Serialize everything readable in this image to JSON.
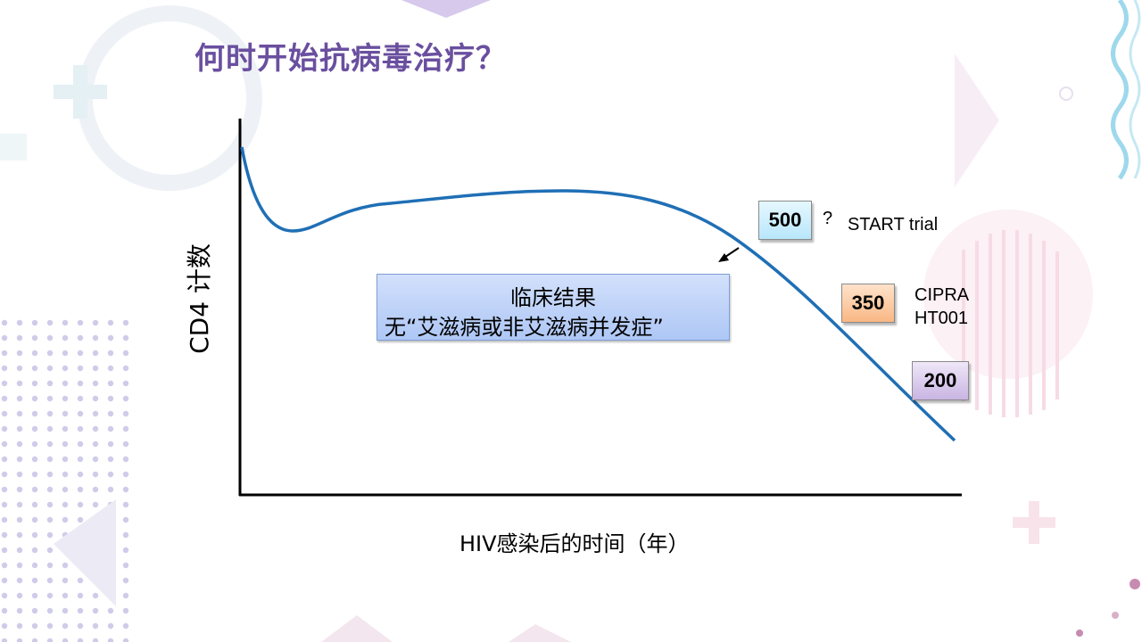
{
  "slide": {
    "title": "何时开始抗病毒治疗？"
  },
  "diagram": {
    "y_axis_label": "CD4 计数",
    "x_axis_label": "HIV感染后的时间（年）",
    "clinical_box": {
      "line1": "临床结果",
      "line2": "无“艾滋病或非艾滋病并发症”"
    },
    "thresholds": [
      {
        "value": "500",
        "trial": "START trial",
        "marker": "?",
        "color": "#b8e6fb"
      },
      {
        "value": "350",
        "trial_line1": "CIPRA",
        "trial_line2": "HT001",
        "color": "#f9b784"
      },
      {
        "value": "200",
        "color": "#c9b5e3"
      }
    ],
    "curve_color": "#1f6fb5"
  }
}
